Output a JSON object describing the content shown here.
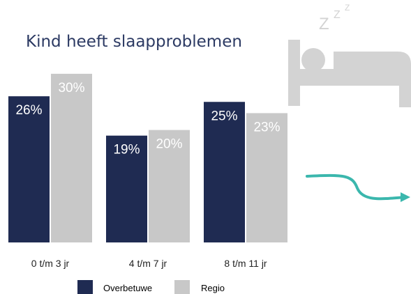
{
  "chart_data": {
    "type": "bar",
    "title": "Kind heeft slaapproblemen",
    "categories": [
      "0 t/m 3 jr",
      "4 t/m 7 jr",
      "8 t/m 11 jr"
    ],
    "series": [
      {
        "name": "Overbetuwe",
        "values": [
          26,
          19,
          25
        ],
        "labels": [
          "26%",
          "19%",
          "25%"
        ],
        "color": "#1f2b52"
      },
      {
        "name": "Regio",
        "values": [
          30,
          20,
          23
        ],
        "labels": [
          "30%",
          "20%",
          "23%"
        ],
        "color": "#c8c8c8"
      }
    ],
    "ylim": [
      0,
      34
    ],
    "grid": false,
    "legend": "bottom",
    "data_label_color": "#ffffff"
  },
  "decor": {
    "sleep_icon": "sleeping-person-bed-icon",
    "sleep_icon_color": "#d3d3d3",
    "zzz_text": "Z",
    "arrow_icon": "curved-arrow-icon",
    "arrow_color": "#3bb7ad"
  }
}
